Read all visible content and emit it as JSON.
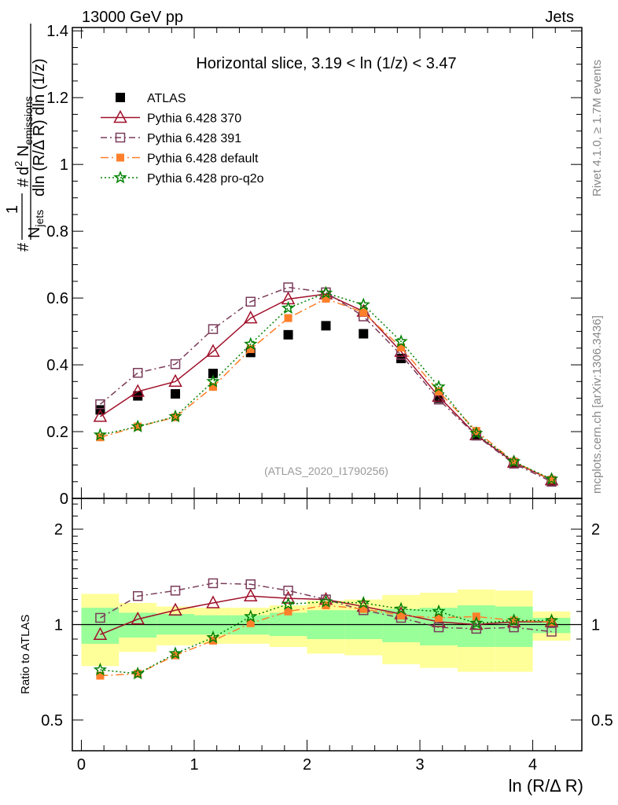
{
  "header": {
    "left": "13000 GeV pp",
    "right": "Jets"
  },
  "side_texts": {
    "rivet": "Rivet 4.1.0, ≥ 1.7M events",
    "mcplots": "mcplots.cern.ch [arXiv:1306.3436]"
  },
  "chart_data": [
    {
      "type": "line",
      "title": "Horizontal slice, 3.19 < ln (1/z) < 3.47",
      "watermark": "(ATLAS_2020_I1790256)",
      "ylabel_parts": {
        "hash1": "#",
        "one": "1",
        "njets": "N",
        "njets_sub": "jets",
        "hash2": "#",
        "num": "d",
        "num_sup": "2",
        "num_n": " N",
        "num_sub": "emissions",
        "den": "dln (R/Δ R) dln (1/z)"
      },
      "xlabel": "ln (R/Δ R)",
      "xlim": [
        -0.08,
        4.435
      ],
      "ylim": [
        0,
        1.41
      ],
      "xticks": [
        0,
        1,
        2,
        3,
        4
      ],
      "xtick_labels": [
        "0",
        "1",
        "2",
        "3",
        "4"
      ],
      "yticks": [
        0,
        0.2,
        0.4,
        0.6,
        0.8,
        1,
        1.2,
        1.4
      ],
      "ytick_labels": [
        "0",
        "0.2",
        "0.4",
        "0.6",
        "0.8",
        "1",
        "1.2",
        "1.4"
      ],
      "x": [
        0.167,
        0.5,
        0.833,
        1.167,
        1.5,
        1.833,
        2.167,
        2.5,
        2.833,
        3.167,
        3.5,
        3.833,
        4.167
      ],
      "legend_position": "top-left",
      "series": [
        {
          "name": "ATLAS",
          "color": "#000000",
          "marker": "filled-square",
          "line": "none",
          "values": [
            0.265,
            0.307,
            0.313,
            0.374,
            0.437,
            0.49,
            0.517,
            0.493,
            0.419,
            0.3,
            0.19,
            0.105,
            0.052
          ]
        },
        {
          "name": "Pythia 6.428 370",
          "color": "#a0102a",
          "marker": "open-triangle",
          "line": "solid",
          "values": [
            0.245,
            0.32,
            0.35,
            0.44,
            0.54,
            0.597,
            0.612,
            0.56,
            0.44,
            0.305,
            0.19,
            0.108,
            0.055
          ]
        },
        {
          "name": "Pythia 6.428 391",
          "color": "#7a3c5a",
          "marker": "open-square",
          "line": "dashdot",
          "values": [
            0.282,
            0.376,
            0.402,
            0.507,
            0.589,
            0.632,
            0.617,
            0.545,
            0.43,
            0.296,
            0.188,
            0.104,
            0.05
          ]
        },
        {
          "name": "Pythia 6.428 default",
          "color": "#ff7f2a",
          "marker": "filled-square-small",
          "line": "longdashdot",
          "values": [
            0.183,
            0.215,
            0.243,
            0.334,
            0.447,
            0.54,
            0.598,
            0.557,
            0.452,
            0.32,
            0.202,
            0.11,
            0.056
          ]
        },
        {
          "name": "Pythia 6.428 pro-q2o",
          "color": "#008000",
          "marker": "open-star",
          "line": "dotted",
          "values": [
            0.19,
            0.215,
            0.245,
            0.35,
            0.462,
            0.57,
            0.615,
            0.58,
            0.47,
            0.334,
            0.195,
            0.11,
            0.058
          ]
        }
      ]
    },
    {
      "type": "line",
      "ylabel": "Ratio to ATLAS",
      "yscale": "log",
      "ylim": [
        0.4,
        2.5
      ],
      "yticks": [
        0.5,
        1,
        2
      ],
      "ytick_labels": [
        "0.5",
        "1",
        "2"
      ],
      "x_edges": [
        0,
        0.333,
        0.667,
        1,
        1.333,
        1.667,
        2,
        2.333,
        2.667,
        3,
        3.333,
        3.667,
        4,
        4.333
      ],
      "band_1sigma": {
        "color": "#99ff99",
        "low": [
          0.87,
          0.91,
          0.93,
          0.93,
          0.93,
          0.92,
          0.9,
          0.9,
          0.88,
          0.86,
          0.85,
          0.85,
          0.94
        ],
        "high": [
          1.13,
          1.09,
          1.08,
          1.07,
          1.07,
          1.09,
          1.11,
          1.11,
          1.12,
          1.13,
          1.15,
          1.14,
          1.05
        ]
      },
      "band_2sigma": {
        "color": "#ffff99",
        "low": [
          0.74,
          0.82,
          0.86,
          0.87,
          0.87,
          0.85,
          0.81,
          0.8,
          0.75,
          0.73,
          0.71,
          0.71,
          0.89
        ],
        "high": [
          1.25,
          1.17,
          1.14,
          1.13,
          1.13,
          1.15,
          1.19,
          1.2,
          1.24,
          1.26,
          1.29,
          1.28,
          1.1
        ]
      },
      "series": [
        {
          "name": "Pythia 6.428 370",
          "values": [
            0.93,
            1.04,
            1.11,
            1.17,
            1.23,
            1.21,
            1.2,
            1.14,
            1.08,
            1.02,
            1.0,
            1.02,
            1.02
          ]
        },
        {
          "name": "Pythia 6.428 391",
          "values": [
            1.05,
            1.23,
            1.28,
            1.35,
            1.34,
            1.28,
            1.2,
            1.11,
            1.05,
            0.98,
            0.97,
            0.98,
            0.95
          ]
        },
        {
          "name": "Pythia 6.428 default",
          "values": [
            0.69,
            0.7,
            0.8,
            0.89,
            1.01,
            1.1,
            1.15,
            1.12,
            1.07,
            1.05,
            1.06,
            1.03,
            1.02
          ]
        },
        {
          "name": "Pythia 6.428 pro-q2o",
          "values": [
            0.72,
            0.7,
            0.81,
            0.91,
            1.06,
            1.16,
            1.18,
            1.17,
            1.12,
            1.1,
            1.01,
            1.03,
            1.03
          ]
        }
      ]
    }
  ]
}
